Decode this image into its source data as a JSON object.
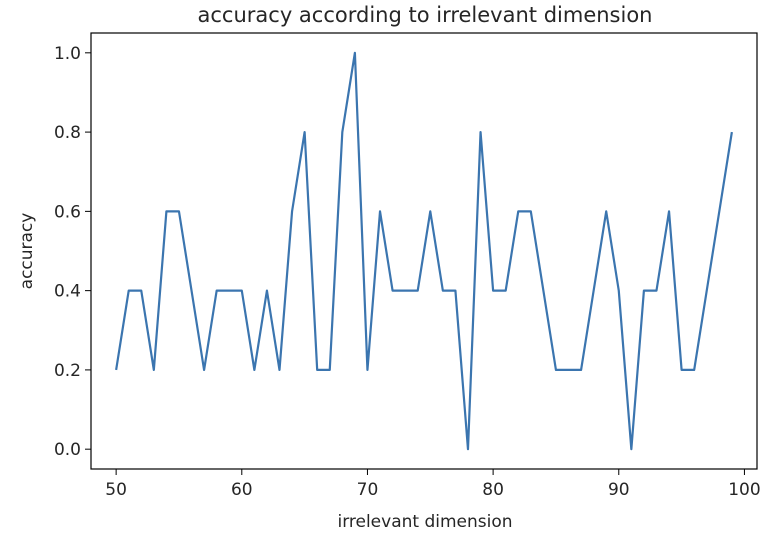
{
  "chart_data": {
    "type": "line",
    "title": "accuracy according to irrelevant dimension",
    "xlabel": "irrelevant dimension",
    "ylabel": "accuracy",
    "xlim": [
      48,
      101
    ],
    "ylim": [
      -0.05,
      1.05
    ],
    "xticks": [
      50,
      60,
      70,
      80,
      90,
      100
    ],
    "yticks": [
      0.0,
      0.2,
      0.4,
      0.6,
      0.8,
      1.0
    ],
    "xtick_labels": [
      "50",
      "60",
      "70",
      "80",
      "90",
      "100"
    ],
    "ytick_labels": [
      "0.0",
      "0.2",
      "0.4",
      "0.6",
      "0.8",
      "1.0"
    ],
    "grid": false,
    "series": [
      {
        "color": "#3b75af",
        "x": [
          50,
          51,
          52,
          53,
          54,
          55,
          56,
          57,
          58,
          59,
          60,
          61,
          62,
          63,
          64,
          65,
          66,
          67,
          68,
          69,
          70,
          71,
          72,
          73,
          74,
          75,
          76,
          77,
          78,
          79,
          80,
          81,
          82,
          83,
          84,
          85,
          86,
          87,
          88,
          89,
          90,
          91,
          92,
          93,
          94,
          95,
          96,
          97,
          98,
          99
        ],
        "values": [
          0.2,
          0.4,
          0.4,
          0.2,
          0.6,
          0.6,
          0.4,
          0.2,
          0.4,
          0.4,
          0.4,
          0.2,
          0.4,
          0.2,
          0.6,
          0.8,
          0.2,
          0.2,
          0.8,
          1.0,
          0.2,
          0.6,
          0.4,
          0.4,
          0.4,
          0.6,
          0.4,
          0.4,
          0.0,
          0.8,
          0.4,
          0.4,
          0.6,
          0.6,
          0.4,
          0.2,
          0.2,
          0.2,
          0.4,
          0.6,
          0.4,
          0.0,
          0.4,
          0.4,
          0.6,
          0.2,
          0.2,
          0.4,
          0.6,
          0.8
        ]
      }
    ]
  }
}
